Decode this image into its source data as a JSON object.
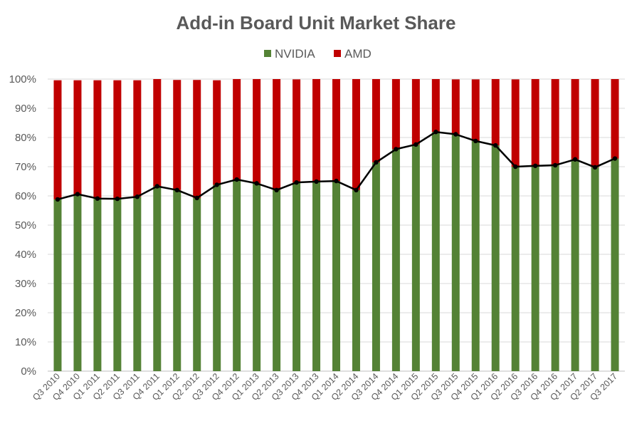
{
  "chart_data": {
    "type": "bar",
    "stacked": true,
    "title": "Add-in Board Unit Market Share",
    "categories": [
      "Q3 2010",
      "Q4 2010",
      "Q1 2011",
      "Q2 2011",
      "Q3 2011",
      "Q4 2011",
      "Q1 2012",
      "Q2 2012",
      "Q3 2012",
      "Q4 2012",
      "Q1 2013",
      "Q2 2013",
      "Q3 2013",
      "Q4 2013",
      "Q1 2014",
      "Q2 2014",
      "Q3 2014",
      "Q4 2014",
      "Q1 2015",
      "Q2 2015",
      "Q3 2015",
      "Q4 2015",
      "Q1 2016",
      "Q2 2016",
      "Q3 2016",
      "Q4 2016",
      "Q1 2017",
      "Q2 2017",
      "Q3 2017"
    ],
    "series": [
      {
        "name": "NVIDIA",
        "color": "#548235",
        "values": [
          58.8,
          60.6,
          59.1,
          59.0,
          59.7,
          63.3,
          62.0,
          59.3,
          63.8,
          65.6,
          64.3,
          62.0,
          64.6,
          64.9,
          65.1,
          62.0,
          71.5,
          76.0,
          77.6,
          81.9,
          81.1,
          78.8,
          77.3,
          70.0,
          70.3,
          70.5,
          72.5,
          69.8,
          72.8
        ]
      },
      {
        "name": "AMD",
        "color": "#c00000",
        "values": [
          40.8,
          39.0,
          40.5,
          40.6,
          39.9,
          36.7,
          37.7,
          40.4,
          35.8,
          34.4,
          35.7,
          38.0,
          35.3,
          35.1,
          34.9,
          38.0,
          28.5,
          24.0,
          22.4,
          18.1,
          18.8,
          21.1,
          22.7,
          29.9,
          29.7,
          29.5,
          27.5,
          30.2,
          27.2
        ]
      }
    ],
    "line": {
      "label": "NVIDIA",
      "color": "#000000"
    },
    "y_ticks": [
      "0%",
      "10%",
      "20%",
      "30%",
      "40%",
      "50%",
      "60%",
      "70%",
      "80%",
      "90%",
      "100%"
    ],
    "ylim": [
      0,
      100
    ],
    "grid": true,
    "legend_position": "top-center"
  }
}
